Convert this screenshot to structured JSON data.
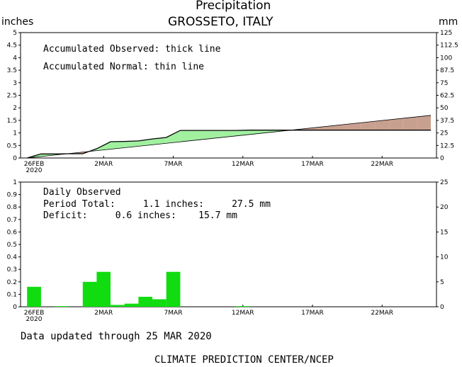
{
  "header": {
    "title": "Precipitation",
    "location": "GROSSETO, ITALY",
    "left_unit": "inches",
    "right_unit": "mm"
  },
  "colors": {
    "observed_above_normal": "#a0f0a0",
    "deficit_fill": "#c8a090",
    "bar_fill": "#10dc10"
  },
  "accumulated": {
    "legend_observed": "Accumulated Observed: thick line",
    "legend_normal": "Accumulated Normal: thin line"
  },
  "daily": {
    "label": "Daily Observed",
    "total_line": "Period Total:     1.1 inches:     27.5 mm",
    "deficit_line": "Deficit:     0.6 inches:    15.7 mm"
  },
  "footer": {
    "updated": "Data updated through 25 MAR 2020",
    "credit": "CLIMATE PREDICTION CENTER/NCEP"
  },
  "chart_data": [
    {
      "type": "area",
      "title": "Precipitation",
      "subtitle": "GROSSETO, ITALY",
      "ylabel": "inches",
      "ylabel_right": "mm",
      "ylim": [
        0,
        5
      ],
      "ylim_right": [
        0,
        125
      ],
      "yticks": [
        "0",
        "0.5",
        "1",
        "1.5",
        "2",
        "2.5",
        "3",
        "3.5",
        "4",
        "4.5",
        "5"
      ],
      "yticks_right": [
        "0",
        "12.5",
        "25",
        "37.5",
        "50",
        "62.5",
        "75",
        "87.5",
        "100",
        "112.5",
        "125"
      ],
      "xticks": [
        {
          "day": 0,
          "label": "26FEB",
          "sub": "2020"
        },
        {
          "day": 5,
          "label": "2MAR"
        },
        {
          "day": 10,
          "label": "7MAR"
        },
        {
          "day": 15,
          "label": "12MAR"
        },
        {
          "day": 20,
          "label": "17MAR"
        },
        {
          "day": 25,
          "label": "22MAR"
        }
      ],
      "series": [
        {
          "name": "Accumulated Observed",
          "x": [
            -0.5,
            0.5,
            1.5,
            2.5,
            3.5,
            4.5,
            5.5,
            6.5,
            7.5,
            8.5,
            9.5,
            10.5,
            11.5,
            12.5,
            13.5,
            14.5,
            15.5,
            16.5,
            17.5,
            18.5,
            19.5,
            20.5,
            21.5,
            22.5,
            23.5,
            24.5,
            25.5,
            26.5,
            27.5,
            28.5
          ],
          "values": [
            0.0,
            0.16,
            0.16,
            0.17,
            0.17,
            0.37,
            0.65,
            0.66,
            0.68,
            0.76,
            0.82,
            1.1,
            1.1,
            1.1,
            1.1,
            1.1,
            1.11,
            1.11,
            1.11,
            1.11,
            1.11,
            1.11,
            1.11,
            1.11,
            1.11,
            1.11,
            1.11,
            1.11,
            1.11,
            1.11
          ]
        },
        {
          "name": "Accumulated Normal",
          "x": [
            -0.5,
            28.5
          ],
          "values": [
            0.0,
            1.7
          ]
        }
      ]
    },
    {
      "type": "bar",
      "title": "Daily Observed",
      "ylim": [
        0,
        1
      ],
      "ylim_right": [
        0,
        25
      ],
      "yticks": [
        "0",
        "0.1",
        "0.2",
        "0.3",
        "0.4",
        "0.5",
        "0.6",
        "0.7",
        "0.8",
        "0.9",
        "1"
      ],
      "yticks_right": [
        "0",
        "5",
        "10",
        "15",
        "20",
        "25"
      ],
      "xticks": [
        {
          "day": 0,
          "label": "26FEB",
          "sub": "2020"
        },
        {
          "day": 5,
          "label": "2MAR"
        },
        {
          "day": 10,
          "label": "7MAR"
        },
        {
          "day": 15,
          "label": "12MAR"
        },
        {
          "day": 20,
          "label": "17MAR"
        },
        {
          "day": 25,
          "label": "22MAR"
        }
      ],
      "x": [
        0,
        1,
        2,
        3,
        4,
        5,
        6,
        7,
        8,
        9,
        10,
        11,
        12,
        13,
        14,
        15,
        16,
        17,
        18,
        19,
        20,
        21,
        22,
        23,
        24,
        25,
        26,
        27,
        28
      ],
      "values": [
        0.16,
        0,
        0.005,
        0,
        0.2,
        0.28,
        0.015,
        0.025,
        0.08,
        0.06,
        0.28,
        0,
        0,
        0,
        0,
        0.005,
        0,
        0,
        0,
        0,
        0,
        0,
        0,
        0,
        0,
        0,
        0,
        0,
        0
      ]
    }
  ]
}
